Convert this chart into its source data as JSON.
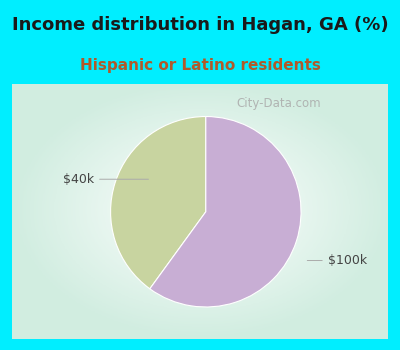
{
  "title": "Income distribution in Hagan, GA (%)",
  "subtitle": "Hispanic or Latino residents",
  "slices": [
    {
      "label": "$40k",
      "value": 40,
      "color": "#c8d4a0"
    },
    {
      "label": "$100k",
      "value": 60,
      "color": "#c8aed4"
    }
  ],
  "title_fontsize": 13,
  "subtitle_fontsize": 11,
  "title_color": "#1a1a1a",
  "subtitle_color": "#b05a2a",
  "bg_color": "#00eeff",
  "watermark": "City-Data.com",
  "label_fontsize": 9,
  "start_angle": 90,
  "label_color": "#444444",
  "line_color": "#aaaaaa"
}
